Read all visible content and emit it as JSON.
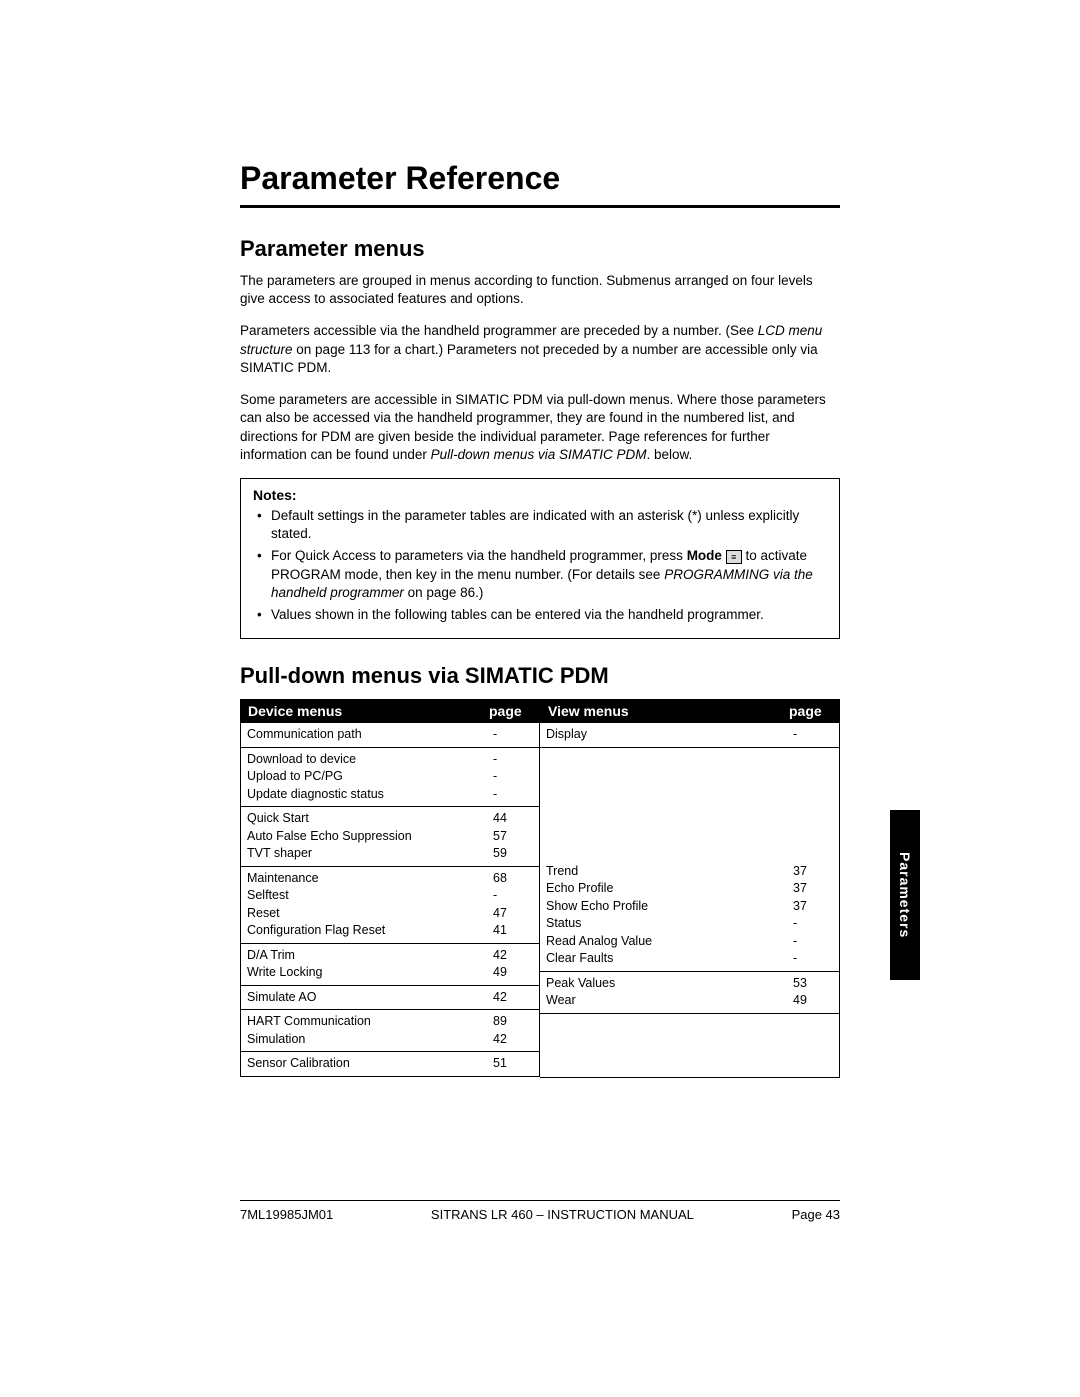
{
  "chapter_title": "Parameter Reference",
  "section1_title": "Parameter menus",
  "para1": "The parameters are grouped in menus according to function. Submenus arranged on four levels give access to associated features and options.",
  "para2a": "Parameters accessible via the handheld programmer are preceded by a number. (See ",
  "para2_italic": "LCD menu structure",
  "para2b": " on page 113 for a chart.) Parameters not preceded by a number are accessible only via SIMATIC PDM.",
  "para3a": "Some parameters are accessible in SIMATIC PDM via pull-down menus. Where those parameters can also be accessed via the handheld programmer, they are found in the numbered list, and directions for PDM are given beside the individual parameter. Page references for further information can be found under ",
  "para3_italic": "Pull-down menus via SIMATIC PDM",
  "para3b": ". below.",
  "notes_title": "Notes:",
  "note1": "Default settings in the parameter tables are indicated with an asterisk (*) unless explicitly stated.",
  "note2a": "For Quick Access to parameters via the handheld programmer, press ",
  "note2_mode": "Mode",
  "note2b": " to activate PROGRAM mode, then key in the menu number. (For details see ",
  "note2_italic": "PROGRAMMING via the handheld programmer",
  "note2c": " on page 86.)",
  "note3": "Values shown in the following tables can be entered via the handheld programmer.",
  "section2_title": "Pull-down menus via SIMATIC PDM",
  "table": {
    "device_header": "Device menus",
    "view_header": "View menus",
    "page_header": "page",
    "device_groups": [
      {
        "rows": [
          {
            "name": "Communication path",
            "page": "-"
          }
        ]
      },
      {
        "rows": [
          {
            "name": "Download to device",
            "page": "-"
          },
          {
            "name": "Upload to PC/PG",
            "page": "-"
          },
          {
            "name": "Update diagnostic status",
            "page": "-"
          }
        ]
      },
      {
        "rows": [
          {
            "name": "Quick Start",
            "page": "44"
          },
          {
            "name": "Auto False Echo Suppression",
            "page": "57"
          },
          {
            "name": "TVT shaper",
            "page": "59"
          }
        ]
      },
      {
        "rows": [
          {
            "name": "Maintenance",
            "page": "68"
          },
          {
            "name": "Selftest",
            "page": "-"
          },
          {
            "name": "Reset",
            "page": "47"
          },
          {
            "name": "Configuration Flag Reset",
            "page": "41"
          }
        ]
      },
      {
        "rows": [
          {
            "name": "D/A Trim",
            "page": "42"
          },
          {
            "name": "Write Locking",
            "page": "49"
          }
        ]
      },
      {
        "rows": [
          {
            "name": "Simulate AO",
            "page": "42"
          }
        ]
      },
      {
        "rows": [
          {
            "name": "HART Communication",
            "page": "89"
          },
          {
            "name": "Simulation",
            "page": "42"
          }
        ]
      },
      {
        "rows": [
          {
            "name": "Sensor Calibration",
            "page": "51"
          }
        ]
      }
    ],
    "view_groups": [
      {
        "rows": [
          {
            "name": "Display",
            "page": "-"
          }
        ]
      },
      {
        "spacer": true
      },
      {
        "rows": [
          {
            "name": "Trend",
            "page": "37"
          },
          {
            "name": "Echo Profile",
            "page": "37"
          },
          {
            "name": "Show Echo Profile",
            "page": "37"
          },
          {
            "name": "Status",
            "page": "-"
          },
          {
            "name": "Read Analog Value",
            "page": "-"
          },
          {
            "name": "Clear Faults",
            "page": "-"
          }
        ]
      },
      {
        "rows": [
          {
            "name": "Peak Values",
            "page": "53"
          },
          {
            "name": "Wear",
            "page": "49"
          }
        ]
      }
    ]
  },
  "side_tab": "Parameters",
  "footer": {
    "left": "7ML19985JM01",
    "center": "SITRANS LR 460 – INSTRUCTION MANUAL",
    "right": "Page 43"
  }
}
